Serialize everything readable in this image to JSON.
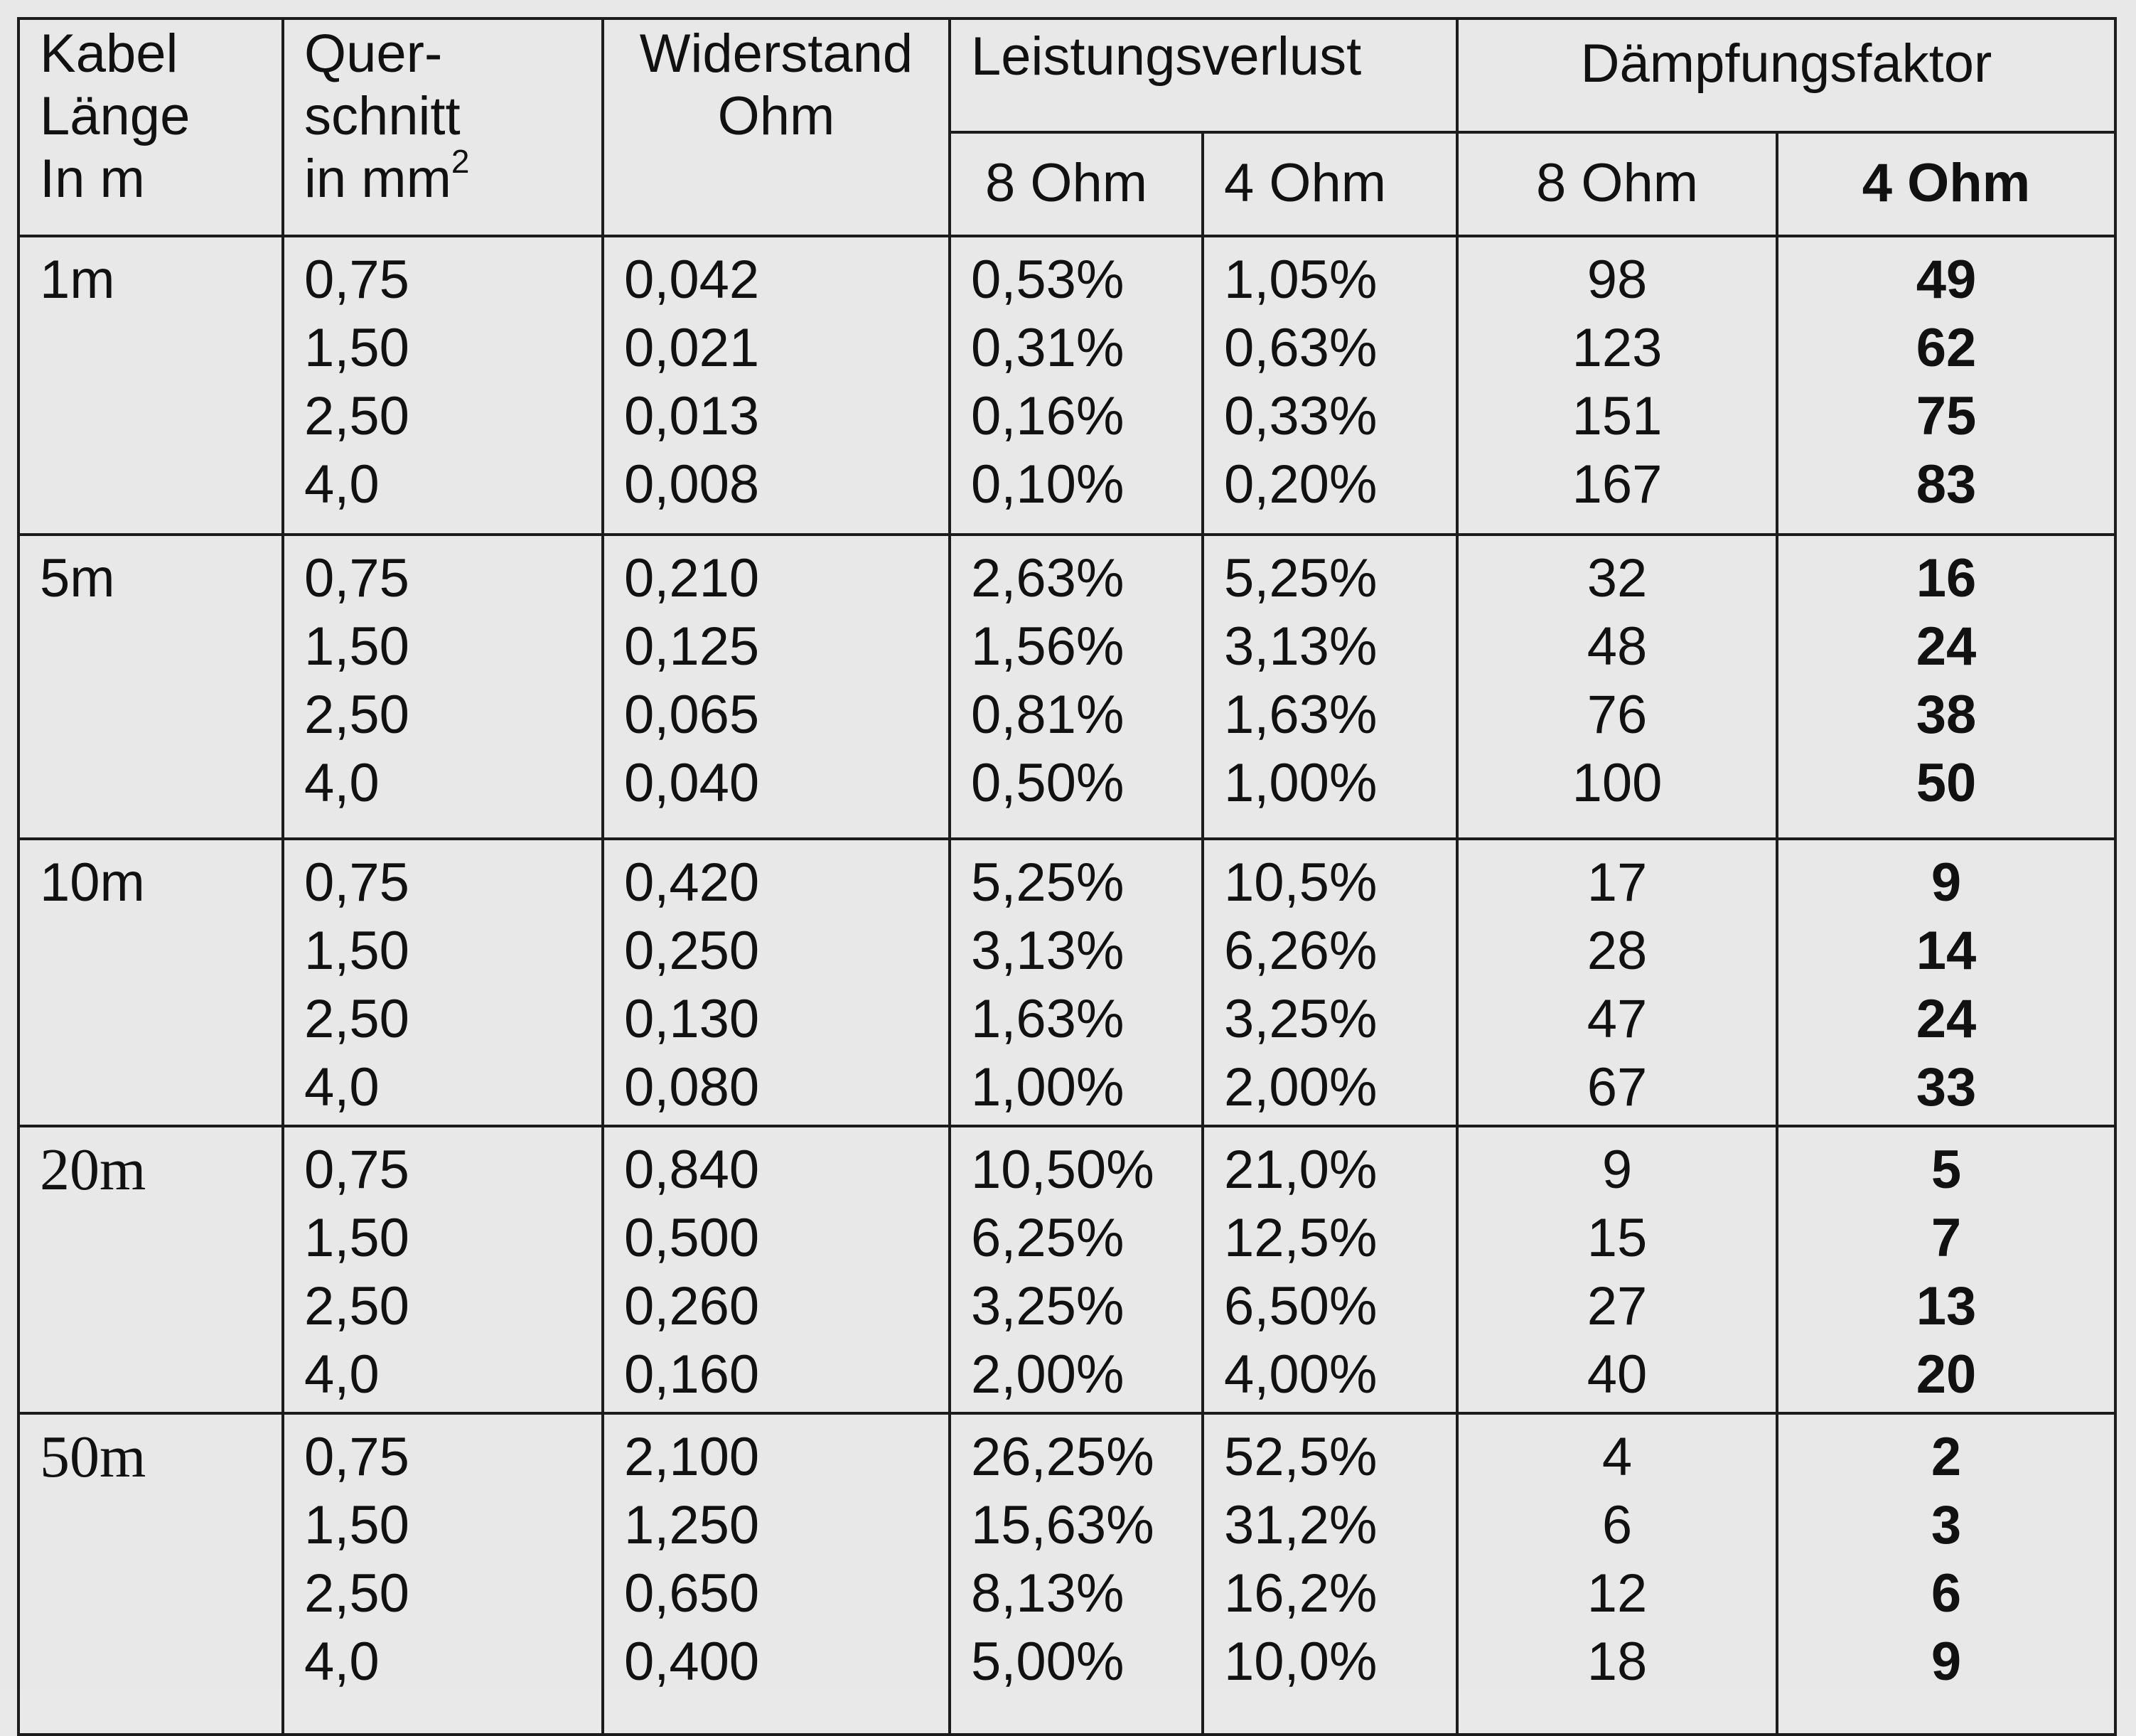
{
  "header": {
    "length_lines": [
      "Kabel",
      "Länge",
      "In m"
    ],
    "cross_section_lines": [
      "Quer-",
      "schnitt",
      "in mm"
    ],
    "cross_section_sup": "2",
    "resistance_lines": [
      "Widerstand",
      "Ohm"
    ],
    "power_loss": "Leistungsverlust",
    "damping": "Dämpfungsfaktor",
    "loss_8": "8 Ohm",
    "loss_4": "4 Ohm",
    "df_8": "8 Ohm",
    "df_4": "4 Ohm"
  },
  "groups": [
    {
      "length": "1m",
      "cross": [
        "0,75",
        "1,50",
        "2,50",
        "4,0"
      ],
      "resistance": [
        "0,042",
        "0,021",
        "0,013",
        "0,008"
      ],
      "loss8": [
        "0,53%",
        "0,31%",
        "0,16%",
        "0,10%"
      ],
      "loss4": [
        "1,05%",
        "0,63%",
        "0,33%",
        "0,20%"
      ],
      "df8": [
        "98",
        "123",
        "151",
        "167"
      ],
      "df4": [
        "49",
        "62",
        "75",
        "83"
      ]
    },
    {
      "length": "5m",
      "cross": [
        "0,75",
        "1,50",
        "2,50",
        "4,0"
      ],
      "resistance": [
        "0,210",
        "0,125",
        "0,065",
        "0,040"
      ],
      "loss8": [
        "2,63%",
        "1,56%",
        "0,81%",
        "0,50%"
      ],
      "loss4": [
        "5,25%",
        "3,13%",
        "1,63%",
        "1,00%"
      ],
      "df8": [
        "32",
        "48",
        "76",
        "100"
      ],
      "df4": [
        "16",
        "24",
        "38",
        "50"
      ]
    },
    {
      "length": "10m",
      "cross": [
        "0,75",
        "1,50",
        "2,50",
        "4,0"
      ],
      "resistance": [
        "0,420",
        "0,250",
        "0,130",
        "0,080"
      ],
      "loss8": [
        "5,25%",
        "3,13%",
        "1,63%",
        "1,00%"
      ],
      "loss4": [
        "10,5%",
        "6,26%",
        "3,25%",
        "2,00%"
      ],
      "df8": [
        "17",
        "28",
        "47",
        "67"
      ],
      "df4": [
        "9",
        "14",
        "24",
        "33"
      ]
    },
    {
      "length": "20m",
      "cross": [
        "0,75",
        "1,50",
        "2,50",
        "4,0"
      ],
      "resistance": [
        "0,840",
        "0,500",
        "0,260",
        "0,160"
      ],
      "loss8": [
        "10,50%",
        "6,25%",
        "3,25%",
        "2,00%"
      ],
      "loss4": [
        "21,0%",
        "12,5%",
        "6,50%",
        "4,00%"
      ],
      "df8": [
        "9",
        "15",
        "27",
        "40"
      ],
      "df4": [
        "5",
        "7",
        "13",
        "20"
      ]
    },
    {
      "length": "50m",
      "cross": [
        "0,75",
        "1,50",
        "2,50",
        "4,0"
      ],
      "resistance": [
        "2,100",
        "1,250",
        "0,650",
        "0,400"
      ],
      "loss8": [
        "26,25%",
        "15,63%",
        "8,13%",
        "5,00%"
      ],
      "loss4": [
        "52,5%",
        "31,2%",
        "16,2%",
        "10,0%"
      ],
      "df8": [
        "4",
        "6",
        "12",
        "18"
      ],
      "df4": [
        "2",
        "3",
        "6",
        "9"
      ]
    }
  ]
}
